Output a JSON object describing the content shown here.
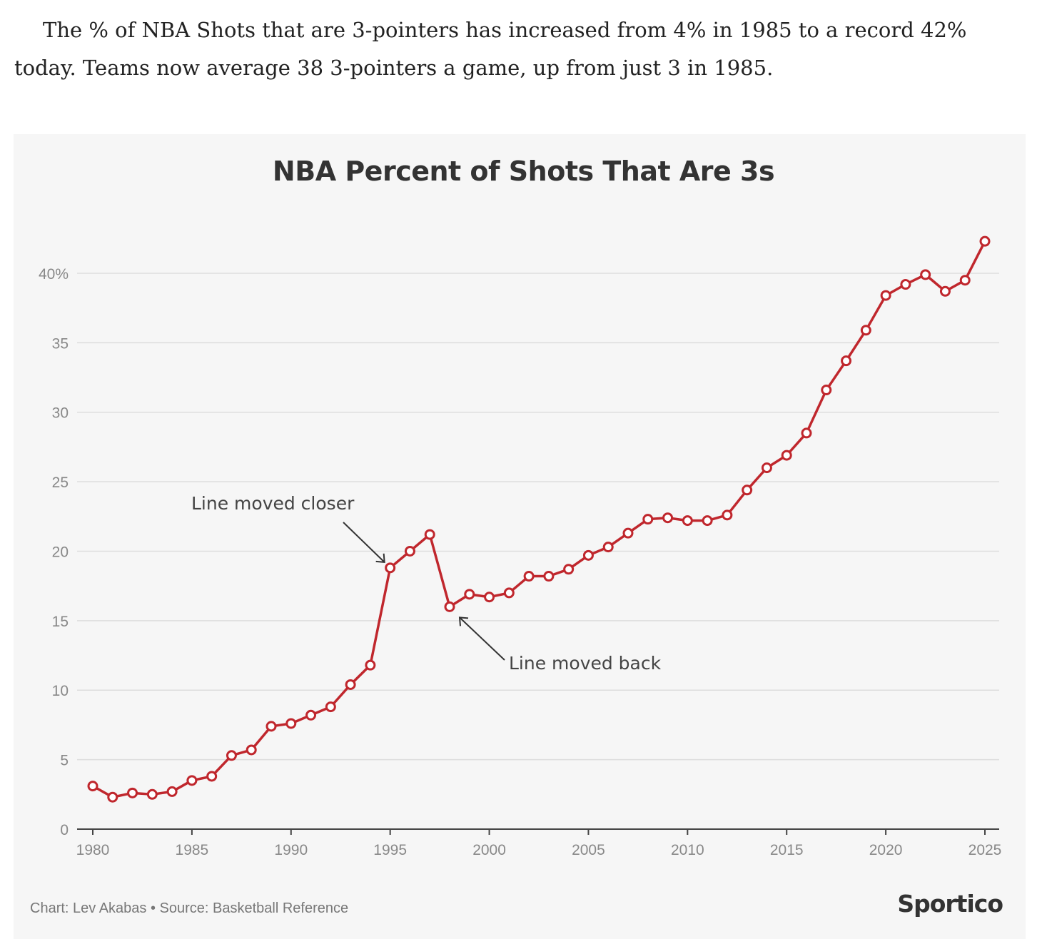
{
  "article": {
    "intro_text": "The % of NBA Shots that are 3-pointers has increased from 4% in 1985 to a record 42% today. Teams now average 38 3-pointers a game, up from just 3 in 1985."
  },
  "colors": {
    "line": "#c0272d",
    "marker_fill": "#ffffff",
    "grid": "#dddddd",
    "axis": "#444444",
    "tick_text": "#888888",
    "annotation_text": "#444444",
    "background": "#f6f6f6"
  },
  "chart_data": {
    "type": "line",
    "title": "NBA Percent of Shots That Are 3s",
    "xlabel": "",
    "ylabel": "",
    "xlim": [
      1980,
      2025
    ],
    "ylim": [
      0,
      42
    ],
    "grid": "horizontal",
    "x_ticks": [
      1980,
      1985,
      1990,
      1995,
      2000,
      2005,
      2010,
      2015,
      2020,
      2025
    ],
    "x_tick_labels": [
      "1980",
      "1985",
      "1990",
      "1995",
      "2000",
      "2005",
      "2010",
      "2015",
      "2020",
      "2025"
    ],
    "y_ticks": [
      0,
      5,
      10,
      15,
      20,
      25,
      30,
      35,
      40
    ],
    "y_tick_labels": [
      "0",
      "5",
      "10",
      "15",
      "20",
      "25",
      "30",
      "35",
      "40%"
    ],
    "series": [
      {
        "x": [
          1980,
          1981,
          1982,
          1983,
          1984,
          1985,
          1986,
          1987,
          1988,
          1989,
          1990,
          1991,
          1992,
          1993,
          1994,
          1995,
          1996,
          1997,
          1998,
          1999,
          2000,
          2001,
          2002,
          2003,
          2004,
          2005,
          2006,
          2007,
          2008,
          2009,
          2010,
          2011,
          2012,
          2013,
          2014,
          2015,
          2016,
          2017,
          2018,
          2019,
          2020,
          2021,
          2022,
          2023,
          2024,
          2025
        ],
        "values": [
          3.1,
          2.3,
          2.6,
          2.5,
          2.7,
          3.5,
          3.8,
          5.3,
          5.7,
          7.4,
          7.6,
          8.2,
          8.8,
          10.4,
          11.8,
          18.8,
          20.0,
          21.2,
          16.0,
          16.9,
          16.7,
          17.0,
          18.2,
          18.2,
          18.7,
          19.7,
          20.3,
          21.3,
          22.3,
          22.4,
          22.2,
          22.2,
          22.6,
          24.4,
          26.0,
          26.9,
          28.5,
          31.6,
          33.7,
          35.9,
          38.4,
          39.2,
          39.9,
          38.7,
          39.5,
          42.3
        ]
      }
    ],
    "annotations": [
      {
        "text": "Line moved closer",
        "x": 1995,
        "y": 18.8
      },
      {
        "text": "Line moved back",
        "x": 1998,
        "y": 16.0
      }
    ]
  },
  "footer": {
    "credit": "Chart: Lev Akabas • Source: Basketball Reference",
    "brand": "Sportico"
  }
}
